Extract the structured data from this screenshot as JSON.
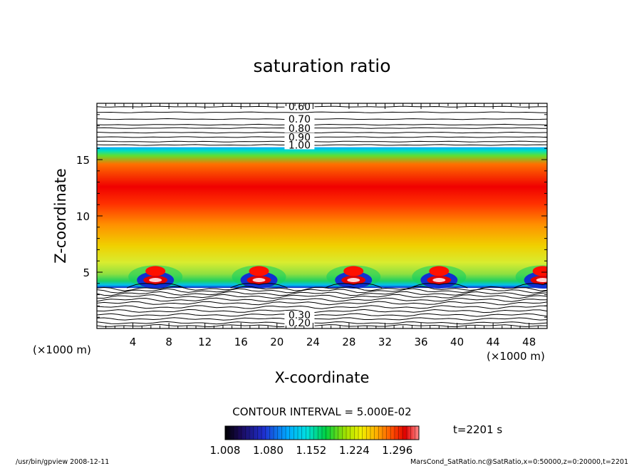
{
  "chart_data": {
    "type": "heatmap",
    "title": "saturation ratio",
    "xlabel": "X-coordinate",
    "ylabel": "Z-coordinate",
    "x_unit_left": "(×1000 m)",
    "x_unit_right": "(×1000 m)",
    "xlim": [
      0,
      50
    ],
    "ylim": [
      0,
      20
    ],
    "xticks": [
      4,
      8,
      12,
      16,
      20,
      24,
      28,
      32,
      36,
      40,
      44,
      48
    ],
    "yticks": [
      5,
      10,
      15
    ],
    "contour_interval_label": "CONTOUR INTERVAL = 5.000E-02",
    "time_label": "t=2201 s",
    "colorbar": {
      "min": 1.008,
      "max": 1.332,
      "tick_values": [
        1.008,
        1.08,
        1.152,
        1.224,
        1.296
      ],
      "tick_labels": [
        "1.008",
        "1.080",
        "1.152",
        "1.224",
        "1.296"
      ],
      "colors": [
        "#000000",
        "#1a0a5a",
        "#1f2fd0",
        "#00a8ff",
        "#00e0e0",
        "#00d040",
        "#a0e000",
        "#f0f000",
        "#ffb000",
        "#ff5000",
        "#e00000",
        "#ff8a8a"
      ]
    },
    "upper_contour_labels": [
      {
        "label": "0.60",
        "z": 19.7
      },
      {
        "label": "0.70",
        "z": 18.6
      },
      {
        "label": "0.80",
        "z": 17.8
      },
      {
        "label": "0.90",
        "z": 17.0
      },
      {
        "label": "1.00",
        "z": 16.3
      }
    ],
    "lower_contour_labels": [
      {
        "label": "0.20",
        "z": 0.5
      },
      {
        "label": "0.30",
        "z": 1.2
      }
    ],
    "upper_contours_z": [
      19.7,
      19.2,
      18.6,
      18.1,
      17.8,
      17.4,
      17.0,
      16.6,
      16.3
    ],
    "lower_contours_z": [
      0.25,
      0.5,
      0.85,
      1.2,
      1.55,
      1.9,
      2.25,
      2.55,
      2.85,
      3.1,
      3.35,
      3.55
    ],
    "saturated_layer": {
      "z_bottom": 3.6,
      "z_top": 16.1,
      "z_peak": 12.5
    },
    "plumes_x": [
      6.5,
      18,
      28.5,
      38,
      49.5
    ]
  },
  "footer": {
    "left": "/usr/bin/gpview   2008-12-11",
    "right": "MarsCond_SatRatio.nc@SatRatio,x=0:50000,z=0:20000,t=2201"
  }
}
